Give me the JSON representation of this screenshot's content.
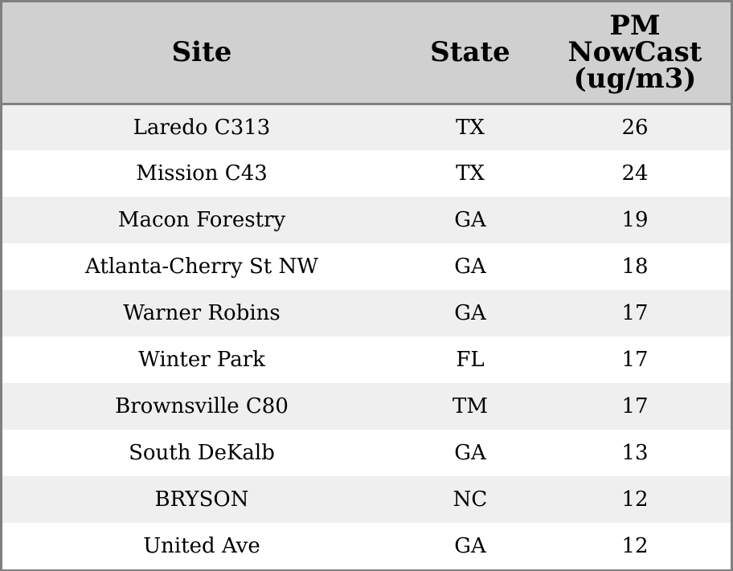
{
  "chart_data": {
    "type": "table",
    "columns": [
      "Site",
      "State",
      "PM NowCast (ug/m3)"
    ],
    "header_lines": {
      "site": [
        "Site"
      ],
      "state": [
        "State"
      ],
      "pm": [
        "PM",
        "NowCast",
        "(ug/m3)"
      ]
    },
    "rows": [
      {
        "site": "Laredo C313",
        "state": "TX",
        "pm": "26"
      },
      {
        "site": "Mission C43",
        "state": "TX",
        "pm": "24"
      },
      {
        "site": "Macon Forestry",
        "state": "GA",
        "pm": "19"
      },
      {
        "site": "Atlanta-Cherry St NW",
        "state": "GA",
        "pm": "18"
      },
      {
        "site": "Warner Robins",
        "state": "GA",
        "pm": "17"
      },
      {
        "site": "Winter Park",
        "state": "FL",
        "pm": "17"
      },
      {
        "site": "Brownsville C80",
        "state": "TM",
        "pm": "17"
      },
      {
        "site": "South DeKalb",
        "state": "GA",
        "pm": "13"
      },
      {
        "site": "BRYSON",
        "state": "NC",
        "pm": "12"
      },
      {
        "site": "United Ave",
        "state": "GA",
        "pm": "12"
      }
    ],
    "colors": {
      "header_background": "#d0d0d0",
      "striped_row_background": "#efefef",
      "plain_row_background": "#ffffff",
      "border": "#808080"
    }
  }
}
